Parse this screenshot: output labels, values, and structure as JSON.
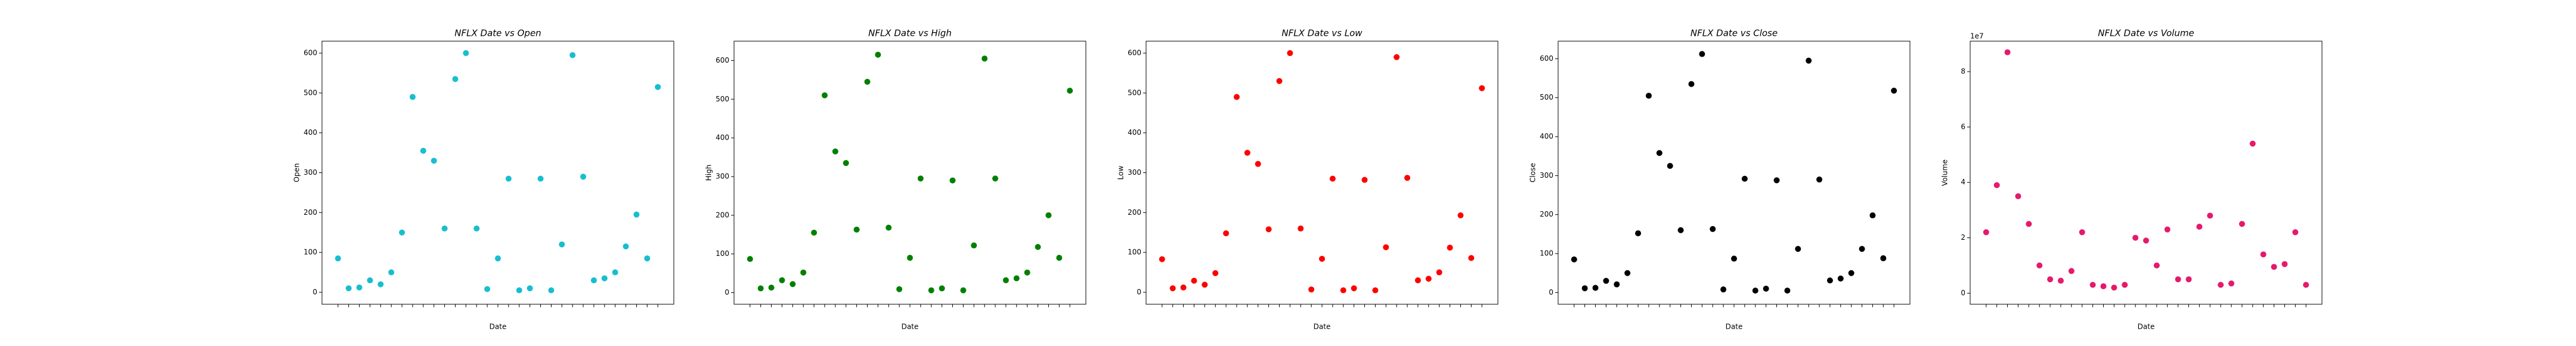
{
  "chart_data": [
    {
      "type": "scatter",
      "title": "NFLX Date vs Open",
      "x_label": "Date",
      "y_label": "Open",
      "color": "#17becf",
      "categories": [
        null,
        null,
        null,
        null,
        null,
        null,
        null,
        null,
        null,
        null,
        null,
        null,
        null,
        null,
        null,
        null,
        null,
        null,
        null,
        null,
        null,
        null,
        null,
        null,
        null,
        null,
        null,
        null,
        null,
        null,
        null
      ],
      "values": [
        85,
        10,
        12,
        30,
        20,
        50,
        150,
        490,
        355,
        330,
        160,
        535,
        600,
        160,
        8,
        85,
        285,
        5,
        10,
        285,
        5,
        120,
        595,
        290,
        30,
        35,
        50,
        115,
        195,
        85,
        515
      ],
      "ylim": [
        -30,
        630
      ],
      "yticks": [
        0,
        100,
        200,
        300,
        400,
        500,
        600
      ]
    },
    {
      "type": "scatter",
      "title": "NFLX Date vs High",
      "x_label": "Date",
      "y_label": "High",
      "color": "#008000",
      "categories": [
        null,
        null,
        null,
        null,
        null,
        null,
        null,
        null,
        null,
        null,
        null,
        null,
        null,
        null,
        null,
        null,
        null,
        null,
        null,
        null,
        null,
        null,
        null,
        null,
        null,
        null,
        null,
        null,
        null,
        null,
        null
      ],
      "values": [
        87,
        11,
        13,
        32,
        22,
        52,
        155,
        510,
        365,
        335,
        163,
        545,
        615,
        168,
        9,
        90,
        295,
        6,
        11,
        290,
        6,
        122,
        605,
        295,
        32,
        37,
        52,
        118,
        200,
        90,
        522
      ],
      "ylim": [
        -30,
        650
      ],
      "yticks": [
        0,
        100,
        200,
        300,
        400,
        500,
        600
      ]
    },
    {
      "type": "scatter",
      "title": "NFLX Date vs Low",
      "x_label": "Date",
      "y_label": "Low",
      "color": "#ff0000",
      "categories": [
        null,
        null,
        null,
        null,
        null,
        null,
        null,
        null,
        null,
        null,
        null,
        null,
        null,
        null,
        null,
        null,
        null,
        null,
        null,
        null,
        null,
        null,
        null,
        null,
        null,
        null,
        null,
        null,
        null,
        null,
        null
      ],
      "values": [
        83,
        10,
        12,
        29,
        19,
        48,
        148,
        490,
        350,
        322,
        158,
        530,
        600,
        160,
        7,
        84,
        285,
        5,
        10,
        282,
        5,
        113,
        590,
        287,
        30,
        34,
        50,
        112,
        193,
        86,
        512
      ],
      "ylim": [
        -30,
        630
      ],
      "yticks": [
        0,
        100,
        200,
        300,
        400,
        500,
        600
      ]
    },
    {
      "type": "scatter",
      "title": "NFLX Date vs Close",
      "x_label": "Date",
      "y_label": "Close",
      "color": "#000000",
      "categories": [
        null,
        null,
        null,
        null,
        null,
        null,
        null,
        null,
        null,
        null,
        null,
        null,
        null,
        null,
        null,
        null,
        null,
        null,
        null,
        null,
        null,
        null,
        null,
        null,
        null,
        null,
        null,
        null,
        null,
        null,
        null
      ],
      "values": [
        85,
        11,
        12,
        30,
        21,
        50,
        152,
        505,
        358,
        325,
        160,
        535,
        612,
        163,
        8,
        87,
        292,
        5,
        10,
        288,
        5,
        112,
        595,
        290,
        31,
        36,
        50,
        112,
        198,
        88,
        518
      ],
      "ylim": [
        -30,
        645
      ],
      "yticks": [
        0,
        100,
        200,
        300,
        400,
        500,
        600
      ]
    },
    {
      "type": "scatter",
      "title": "NFLX Date vs Volume",
      "x_label": "Date",
      "y_label": "Volume",
      "color": "#e6196b",
      "offset_text": "1e7",
      "categories": [
        null,
        null,
        null,
        null,
        null,
        null,
        null,
        null,
        null,
        null,
        null,
        null,
        null,
        null,
        null,
        null,
        null,
        null,
        null,
        null,
        null,
        null,
        null,
        null,
        null,
        null,
        null,
        null,
        null,
        null,
        null
      ],
      "values": [
        22000000,
        39000000,
        87000000,
        35000000,
        25000000,
        10000000,
        5000000,
        4500000,
        8000000,
        22000000,
        3000000,
        2500000,
        2000000,
        3000000,
        20000000,
        19000000,
        10000000,
        23000000,
        5000000,
        5000000,
        24000000,
        28000000,
        3000000,
        3500000,
        25000000,
        54000000,
        14000000,
        9500000,
        10500000,
        22000000,
        3000000
      ],
      "ylim": [
        -4000000,
        91000000
      ],
      "yticks": [
        {
          "value": 0,
          "label": "0"
        },
        {
          "value": 20000000,
          "label": "2"
        },
        {
          "value": 40000000,
          "label": "4"
        },
        {
          "value": 60000000,
          "label": "6"
        },
        {
          "value": 80000000,
          "label": "8"
        }
      ]
    }
  ]
}
